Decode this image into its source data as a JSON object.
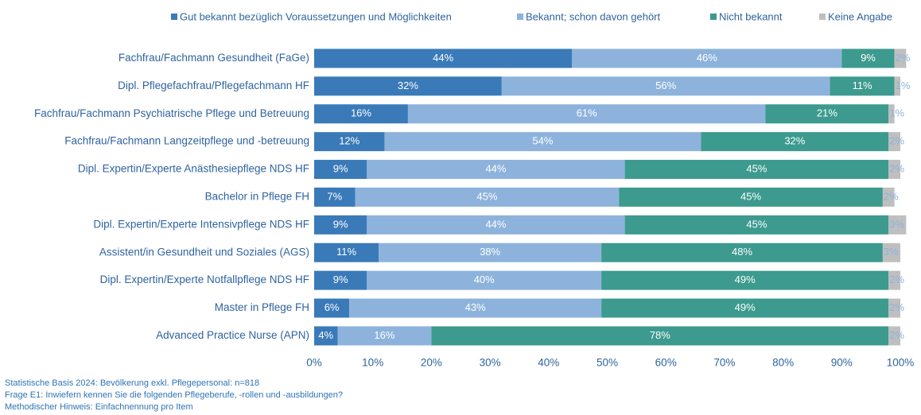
{
  "chart_data": {
    "type": "stacked-barh",
    "categories": [
      "Fachfrau/Fachmann Gesundheit (FaGe)",
      "Dipl. Pflegefachfrau/Pflegefachmann HF",
      "Fachfrau/Fachmann Psychiatrische Pflege und Betreuung",
      "Fachfrau/Fachmann Langzeitpflege und -betreuung",
      "Dipl. Expertin/Experte Anästhesiepflege NDS HF",
      "Bachelor in Pflege FH",
      "Dipl. Expertin/Experte Intensivpflege NDS HF",
      "Assistent/in Gesundheit und Soziales (AGS)",
      "Dipl. Expertin/Experte Notfallpflege NDS HF",
      "Master in Pflege FH",
      "Advanced Practice Nurse (APN)"
    ],
    "series": [
      {
        "name": "Gut bekannt bezüglich Voraussetzungen und Möglichkeiten",
        "color": "#3a7ab8",
        "values": [
          44,
          32,
          16,
          12,
          9,
          7,
          9,
          11,
          9,
          6,
          4
        ],
        "value_labels": [
          "44%",
          "32%",
          "16%",
          "12%",
          "9%",
          "7%",
          "9%",
          "11%",
          "9%",
          "6%",
          "4%"
        ]
      },
      {
        "name": "Bekannt; schon davon gehört",
        "color": "#8db3dc",
        "values": [
          46,
          56,
          61,
          54,
          44,
          45,
          44,
          38,
          40,
          43,
          16
        ],
        "value_labels": [
          "46%",
          "56%",
          "61%",
          "54%",
          "44%",
          "45%",
          "44%",
          "38%",
          "40%",
          "43%",
          "16%"
        ]
      },
      {
        "name": "Nicht bekannt",
        "color": "#3c9a8e",
        "values": [
          9,
          11,
          21,
          32,
          45,
          45,
          45,
          48,
          49,
          49,
          78
        ],
        "value_labels": [
          "9%",
          "11%",
          "21%",
          "32%",
          "45%",
          "45%",
          "45%",
          "48%",
          "49%",
          "49%",
          "78%"
        ]
      },
      {
        "name": "Keine Angabe",
        "color": "#bfbfbf",
        "values": [
          2,
          1,
          1,
          2,
          2,
          2,
          3,
          3,
          2,
          2,
          2
        ],
        "value_labels": [
          "2%",
          "1%",
          "1%",
          "2%",
          "2%",
          "2%",
          "3%",
          "3%",
          "2%",
          "2%",
          "2%"
        ]
      }
    ],
    "xlim": [
      0,
      100
    ],
    "xticks": [
      {
        "value": 0,
        "label": "0%"
      },
      {
        "value": 10,
        "label": "10%"
      },
      {
        "value": 20,
        "label": "20%"
      },
      {
        "value": 30,
        "label": "30%"
      },
      {
        "value": 40,
        "label": "40%"
      },
      {
        "value": 50,
        "label": "50%"
      },
      {
        "value": 60,
        "label": "60%"
      },
      {
        "value": 70,
        "label": "70%"
      },
      {
        "value": 80,
        "label": "80%"
      },
      {
        "value": 90,
        "label": "90%"
      },
      {
        "value": 100,
        "label": "100%"
      }
    ],
    "legend": "top",
    "notes": [
      "Statistische Basis 2024: Bevölkerung exkl. Pflegepersonal: n=818",
      "Frage E1: Inwiefern kennen Sie die folgenden Pflegeberufe, -rollen und -ausbildungen?",
      "Methodischer Hinweis: Einfachnennung pro Item"
    ]
  }
}
